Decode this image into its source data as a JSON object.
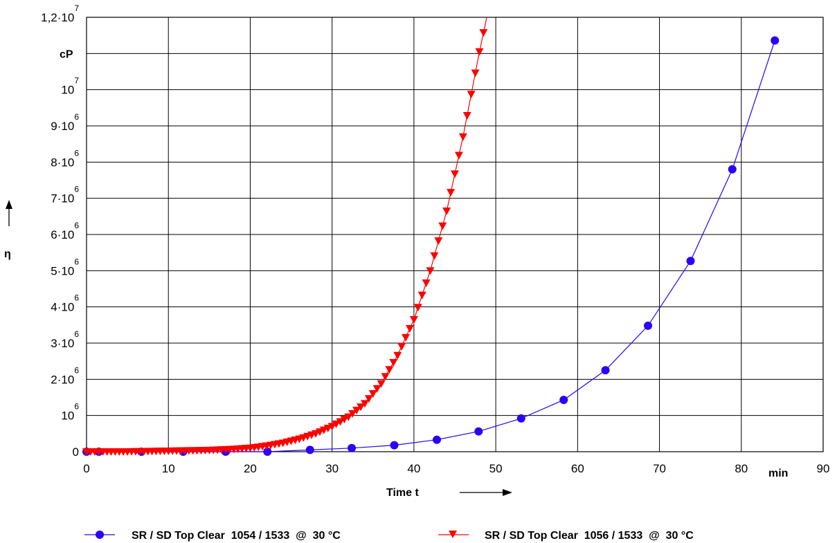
{
  "chart_data": {
    "type": "line",
    "xlabel": "Time t",
    "x_unit": "min",
    "ylabel": "η",
    "y_unit": "cP",
    "xlim": [
      0,
      90
    ],
    "ylim": [
      0,
      12000000
    ],
    "grid": true,
    "legend_position": "bottom",
    "x_ticks": [
      "0",
      "10",
      "20",
      "30",
      "40",
      "50",
      "60",
      "70",
      "80",
      "90"
    ],
    "y_ticks": [
      {
        "value": 0,
        "base": "0",
        "exp": ""
      },
      {
        "value": 1000000,
        "base": "10",
        "exp": "6"
      },
      {
        "value": 2000000,
        "base": "2·10",
        "exp": "6"
      },
      {
        "value": 3000000,
        "base": "3·10",
        "exp": "6"
      },
      {
        "value": 4000000,
        "base": "4·10",
        "exp": "6"
      },
      {
        "value": 5000000,
        "base": "5·10",
        "exp": "6"
      },
      {
        "value": 6000000,
        "base": "6·10",
        "exp": "6"
      },
      {
        "value": 7000000,
        "base": "7·10",
        "exp": "6"
      },
      {
        "value": 8000000,
        "base": "8·10",
        "exp": "6"
      },
      {
        "value": 9000000,
        "base": "9·10",
        "exp": "6"
      },
      {
        "value": 10000000,
        "base": "10",
        "exp": "7"
      },
      {
        "value": 12000000,
        "base": "1,2·10",
        "exp": "7"
      }
    ],
    "series": [
      {
        "name": "SR / SD Top Clear  1054 / 1533  @  30 °C",
        "color": "#2b00f5",
        "marker": "circle",
        "x": [
          0,
          1.5,
          6.7,
          11.8,
          17,
          22.1,
          27.3,
          32.4,
          37.6,
          42.8,
          47.9,
          53.1,
          58.3,
          63.4,
          68.6,
          73.8,
          78.9,
          84.1
        ],
        "y": [
          0,
          0,
          0,
          0,
          0,
          0,
          50000,
          100000,
          180000,
          330000,
          560000,
          920000,
          1430000,
          2250000,
          3480000,
          5270000,
          7800000,
          11360000
        ]
      },
      {
        "name": "SR / SD Top Clear  1056 / 1533  @  30 °C",
        "color": "#ff0000",
        "marker": "triangle-down",
        "x": [
          0,
          5,
          10,
          15,
          18,
          20,
          22,
          24,
          26,
          28,
          30,
          32,
          34,
          36,
          38,
          40,
          42,
          44,
          46,
          48,
          48.9
        ],
        "y": [
          0,
          0,
          20000,
          40000,
          70000,
          100000,
          160000,
          240000,
          350000,
          500000,
          700000,
          960000,
          1330000,
          1880000,
          2660000,
          3650000,
          5000000,
          6650000,
          8700000,
          11050000,
          12000000
        ]
      }
    ]
  }
}
